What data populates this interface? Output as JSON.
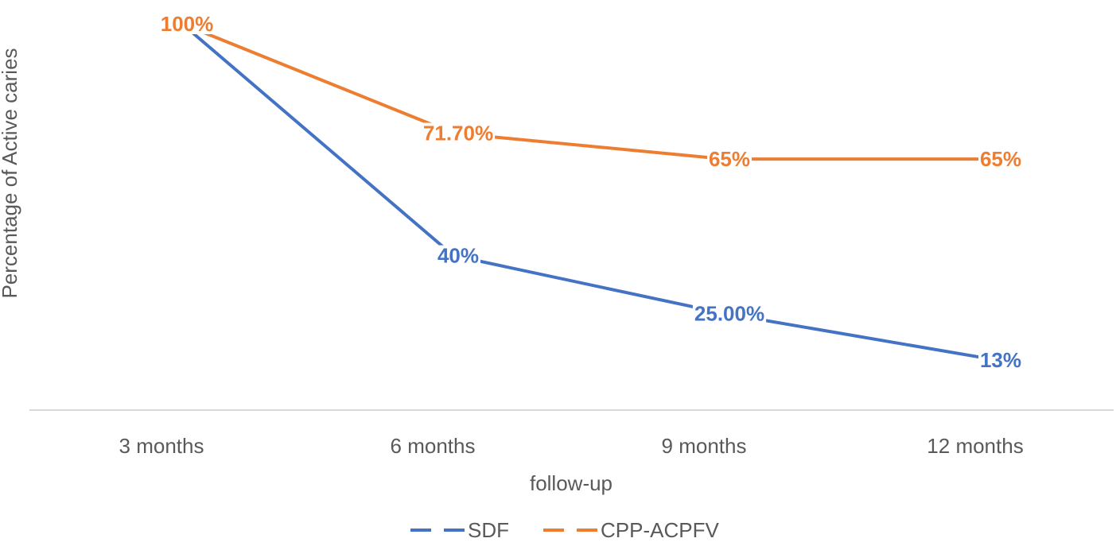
{
  "chart_data": {
    "type": "line",
    "categories": [
      "3 months",
      "6 months",
      "9 months",
      "12 months"
    ],
    "xlabel": "follow-up",
    "ylabel": "Percentage of Active caries",
    "ylim": [
      0,
      100
    ],
    "grid": false,
    "legend_position": "bottom",
    "series": [
      {
        "name": "SDF",
        "color": "#4472C4",
        "values": [
          100,
          40,
          25,
          13
        ],
        "labels": [
          "",
          "40%",
          "25.00%",
          "13%"
        ]
      },
      {
        "name": "CPP-ACPFV",
        "color": "#ED7D31",
        "values": [
          100,
          71.7,
          65,
          65
        ],
        "labels": [
          "100%",
          "71.70%",
          "65%",
          "65%"
        ]
      }
    ]
  }
}
